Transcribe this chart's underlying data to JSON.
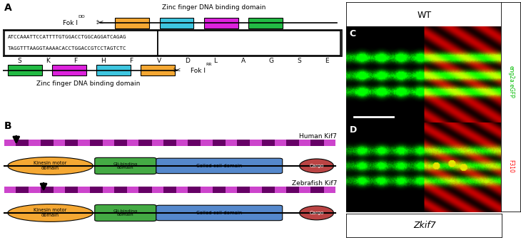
{
  "panel_A": {
    "label": "A",
    "dna_seq_top": "ATCCAAATTCCATTTTGTGGACCTGGCAGGATCAGAG",
    "dna_seq_bot": "TAGGTTTAAGGTAAAACACCTGGACCGTCCTAGTCTC",
    "amino_acids": [
      "S",
      "K",
      "F",
      "H",
      "F",
      "V",
      "D",
      "L",
      "A",
      "G",
      "S",
      "E"
    ],
    "zf_colors_top": [
      "#F5A833",
      "#3EC6E0",
      "#DD22DD",
      "#22BB44"
    ],
    "zf_colors_bot": [
      "#22BB44",
      "#DD22DD",
      "#3EC6E0",
      "#F5A833"
    ],
    "zinc_label_top": "Zinc finger DNA binding domain",
    "zinc_label_bot": "Zinc finger DNA binding domain"
  },
  "panel_B": {
    "label": "B",
    "human_label": "Human Kif7",
    "zebrafish_label": "Zebrafish Kif7",
    "stripe_light": "#CC44CC",
    "stripe_dark": "#660066",
    "kinesin_color": "#F5A833",
    "kinesin_label": "Kinesin motor\ndomain",
    "gli_color": "#44AA44",
    "gli_label": "Gli-binding\ndomain",
    "coiled_color": "#5588CC",
    "coiled_label": "Coiled coil domain",
    "cargo_color": "#BB4444",
    "cargo_label": "Cargo"
  },
  "right_label_green": "eng2a:eGFP",
  "right_label_red": "F310",
  "wt_label": "WT",
  "zkif7_label": "Zkif7",
  "bg_color": "#ffffff"
}
